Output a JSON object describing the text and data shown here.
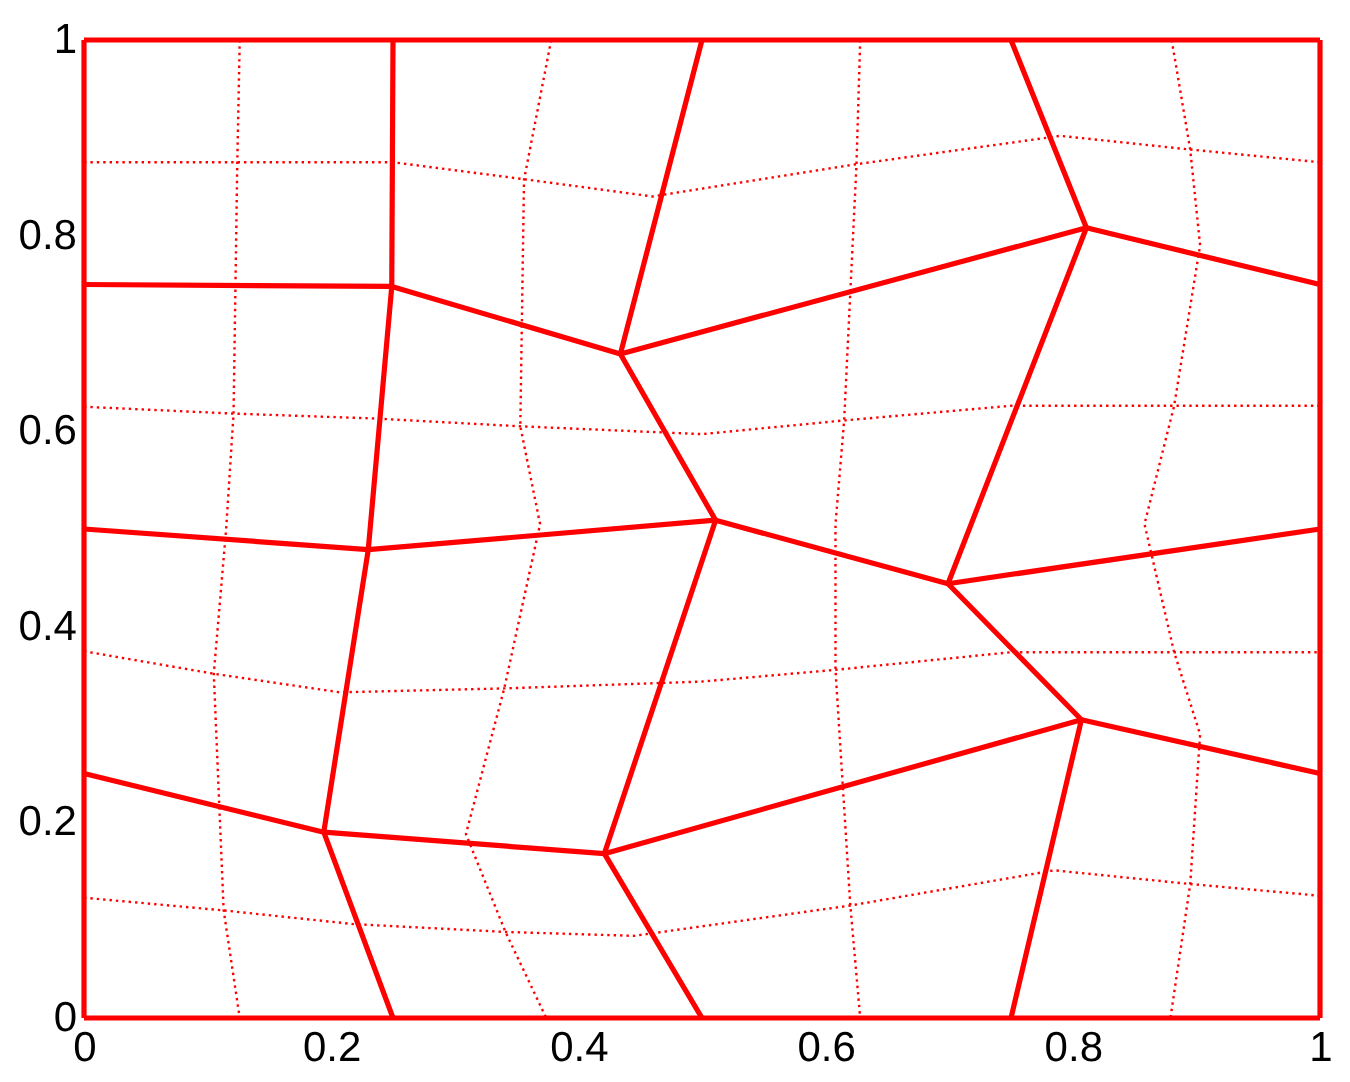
{
  "chart_data": {
    "type": "line",
    "xlim": [
      0,
      1
    ],
    "ylim": [
      0,
      1
    ],
    "xticks": [
      0,
      0.2,
      0.4,
      0.6,
      0.8,
      1
    ],
    "yticks": [
      0,
      0.2,
      0.4,
      0.6,
      0.8,
      1
    ],
    "grid": false,
    "series": [
      {
        "color": "#ff0000",
        "line_style": "solid",
        "x": [
          0,
          1
        ],
        "values": [
          0,
          0
        ]
      },
      {
        "color": "#ff0000",
        "line_style": "solid",
        "x": [
          0,
          1
        ],
        "values": [
          1,
          1
        ]
      },
      {
        "color": "#ff0000",
        "line_style": "solid",
        "x": [
          0,
          0
        ],
        "values": [
          0,
          1
        ]
      },
      {
        "color": "#ff0000",
        "line_style": "solid",
        "x": [
          1,
          1
        ],
        "values": [
          0,
          1
        ]
      },
      {
        "color": "#ff0000",
        "line_style": "solid",
        "x": [
          0,
          0.249,
          0.434,
          0.811,
          1
        ],
        "values": [
          0.75,
          0.748,
          0.679,
          0.808,
          0.75
        ]
      },
      {
        "color": "#ff0000",
        "line_style": "solid",
        "x": [
          0,
          0.23,
          0.511,
          0.699,
          1
        ],
        "values": [
          0.5,
          0.479,
          0.509,
          0.444,
          0.5
        ]
      },
      {
        "color": "#ff0000",
        "line_style": "solid",
        "x": [
          0,
          0.194,
          0.421,
          0.807,
          1
        ],
        "values": [
          0.25,
          0.19,
          0.168,
          0.305,
          0.25
        ]
      },
      {
        "color": "#ff0000",
        "line_style": "solid",
        "x": [
          0.25,
          0.249,
          0.23,
          0.194,
          0.25
        ],
        "values": [
          1,
          0.748,
          0.479,
          0.19,
          0
        ]
      },
      {
        "color": "#ff0000",
        "line_style": "solid",
        "x": [
          0.5,
          0.434,
          0.511,
          0.421,
          0.5
        ],
        "values": [
          1,
          0.679,
          0.509,
          0.168,
          0
        ]
      },
      {
        "color": "#ff0000",
        "line_style": "solid",
        "x": [
          0.75,
          0.811,
          0.699,
          0.807,
          0.75
        ],
        "values": [
          1,
          0.808,
          0.444,
          0.305,
          0
        ]
      },
      {
        "color": "#ff0000",
        "line_style": "dotted",
        "x": [
          0,
          0.125,
          0.25,
          0.36,
          0.46,
          0.625,
          0.79,
          0.895,
          1
        ],
        "values": [
          0.875,
          0.875,
          0.875,
          0.857,
          0.84,
          0.873,
          0.902,
          0.888,
          0.875
        ]
      },
      {
        "color": "#ff0000",
        "line_style": "dotted",
        "x": [
          0,
          0.121,
          0.235,
          0.353,
          0.5,
          0.615,
          0.75,
          0.882,
          1
        ],
        "values": [
          0.625,
          0.618,
          0.613,
          0.605,
          0.597,
          0.611,
          0.626,
          0.626,
          0.626
        ]
      },
      {
        "color": "#ff0000",
        "line_style": "dotted",
        "x": [
          0,
          0.105,
          0.207,
          0.34,
          0.5,
          0.608,
          0.75,
          0.882,
          1
        ],
        "values": [
          0.375,
          0.352,
          0.333,
          0.337,
          0.344,
          0.356,
          0.374,
          0.374,
          0.374
        ]
      },
      {
        "color": "#ff0000",
        "line_style": "dotted",
        "x": [
          0,
          0.113,
          0.218,
          0.341,
          0.445,
          0.62,
          0.785,
          0.895,
          1
        ],
        "values": [
          0.123,
          0.11,
          0.096,
          0.088,
          0.084,
          0.115,
          0.151,
          0.137,
          0.125
        ]
      },
      {
        "color": "#ff0000",
        "line_style": "dotted",
        "x": [
          0.126,
          0.124,
          0.121,
          0.115,
          0.105,
          0.113,
          0.126
        ],
        "values": [
          1,
          0.873,
          0.618,
          0.5,
          0.352,
          0.11,
          0
        ]
      },
      {
        "color": "#ff0000",
        "line_style": "dotted",
        "x": [
          0.378,
          0.356,
          0.353,
          0.369,
          0.34,
          0.309,
          0.341,
          0.374
        ],
        "values": [
          1,
          0.857,
          0.605,
          0.505,
          0.337,
          0.188,
          0.088,
          0
        ]
      },
      {
        "color": "#ff0000",
        "line_style": "dotted",
        "x": [
          0.628,
          0.625,
          0.615,
          0.608,
          0.608,
          0.62,
          0.628
        ],
        "values": [
          1,
          0.873,
          0.611,
          0.505,
          0.356,
          0.115,
          0
        ]
      },
      {
        "color": "#ff0000",
        "line_style": "dotted",
        "x": [
          0.88,
          0.895,
          0.903,
          0.882,
          0.858,
          0.882,
          0.903,
          0.895,
          0.879
        ],
        "values": [
          1,
          0.888,
          0.79,
          0.626,
          0.505,
          0.374,
          0.29,
          0.137,
          0
        ]
      }
    ]
  }
}
